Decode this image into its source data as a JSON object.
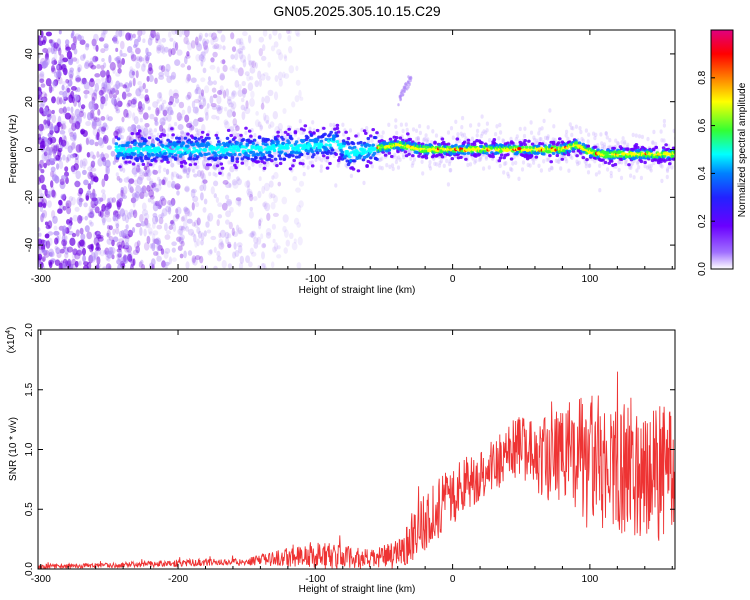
{
  "title": "GN05.2025.305.10.15.C29",
  "colors": {
    "background": "#ffffff",
    "snr_line": "#ee3333",
    "spectrogram_scatter": "#8a3ff0",
    "ridge_cmap": [
      "#e00080",
      "#ff0000",
      "#ff7f00",
      "#ffff00",
      "#33ff33",
      "#00ffff",
      "#0080ff",
      "#2222ff",
      "#6a00ff",
      "#ffffff"
    ]
  },
  "chart_data": [
    {
      "type": "heatmap",
      "xlabel": "Height of straight line (km)",
      "ylabel": "Frequency (Hz)",
      "xlim": [
        -302,
        162
      ],
      "ylim": [
        -50,
        50
      ],
      "xticks": [
        -300,
        -200,
        -100,
        0,
        100
      ],
      "xtick_labels": [
        "-300",
        "-200",
        "-100",
        "0",
        "100"
      ],
      "yticks": [
        -40,
        -20,
        0,
        20,
        40
      ],
      "ytick_labels": [
        "-40",
        "-20",
        "0",
        "20",
        "40"
      ],
      "colorbar": {
        "label": "Normalized spectral amplitude",
        "range": [
          0,
          1
        ],
        "ticks": [
          0.0,
          0.2,
          0.4,
          0.6,
          0.8
        ],
        "tick_labels": [
          "0.0",
          "0.2",
          "0.4",
          "0.6",
          "0.8"
        ]
      },
      "ridge": {
        "description_points": [
          [
            -240,
            0
          ],
          [
            -200,
            0
          ],
          [
            -150,
            0
          ],
          [
            -110,
            1
          ],
          [
            -85,
            3
          ],
          [
            -75,
            -2
          ],
          [
            -60,
            0
          ],
          [
            -40,
            2
          ],
          [
            -20,
            0
          ],
          [
            0,
            0
          ],
          [
            40,
            0
          ],
          [
            80,
            0
          ],
          [
            90,
            2
          ],
          [
            100,
            -1
          ],
          [
            110,
            -2
          ],
          [
            140,
            -2
          ],
          [
            162,
            -2
          ]
        ],
        "noise_region_x": [
          -302,
          -130
        ],
        "streak": [
          [
            -40,
            20
          ],
          [
            -30,
            30
          ]
        ]
      }
    },
    {
      "type": "line",
      "xlabel": "Height of straight line (km)",
      "ylabel": "SNR (10 * v/v)",
      "y_multiplier": "(x10^4)",
      "xlim": [
        -302,
        162
      ],
      "ylim": [
        0,
        2.0
      ],
      "xticks": [
        -300,
        -200,
        -100,
        0,
        100
      ],
      "xtick_labels": [
        "-300",
        "-200",
        "-100",
        "0",
        "100"
      ],
      "yticks": [
        0.0,
        0.5,
        1.0,
        1.5,
        2.0
      ],
      "ytick_labels": [
        "0.0",
        "0.5",
        "1.0",
        "1.5",
        "2.0"
      ],
      "envelope": {
        "x": [
          -302,
          -250,
          -200,
          -150,
          -120,
          -100,
          -80,
          -60,
          -40,
          -30,
          -20,
          0,
          20,
          40,
          50,
          60,
          80,
          100,
          120,
          140,
          162
        ],
        "mean": [
          0.02,
          0.03,
          0.05,
          0.06,
          0.1,
          0.12,
          0.1,
          0.08,
          0.12,
          0.28,
          0.4,
          0.62,
          0.8,
          0.95,
          1.05,
          0.9,
          0.95,
          0.88,
          0.85,
          0.82,
          0.78
        ],
        "spread": [
          0.02,
          0.02,
          0.03,
          0.03,
          0.08,
          0.12,
          0.1,
          0.08,
          0.12,
          0.22,
          0.25,
          0.25,
          0.22,
          0.25,
          0.28,
          0.3,
          0.45,
          0.6,
          0.55,
          0.55,
          0.6
        ]
      }
    }
  ]
}
